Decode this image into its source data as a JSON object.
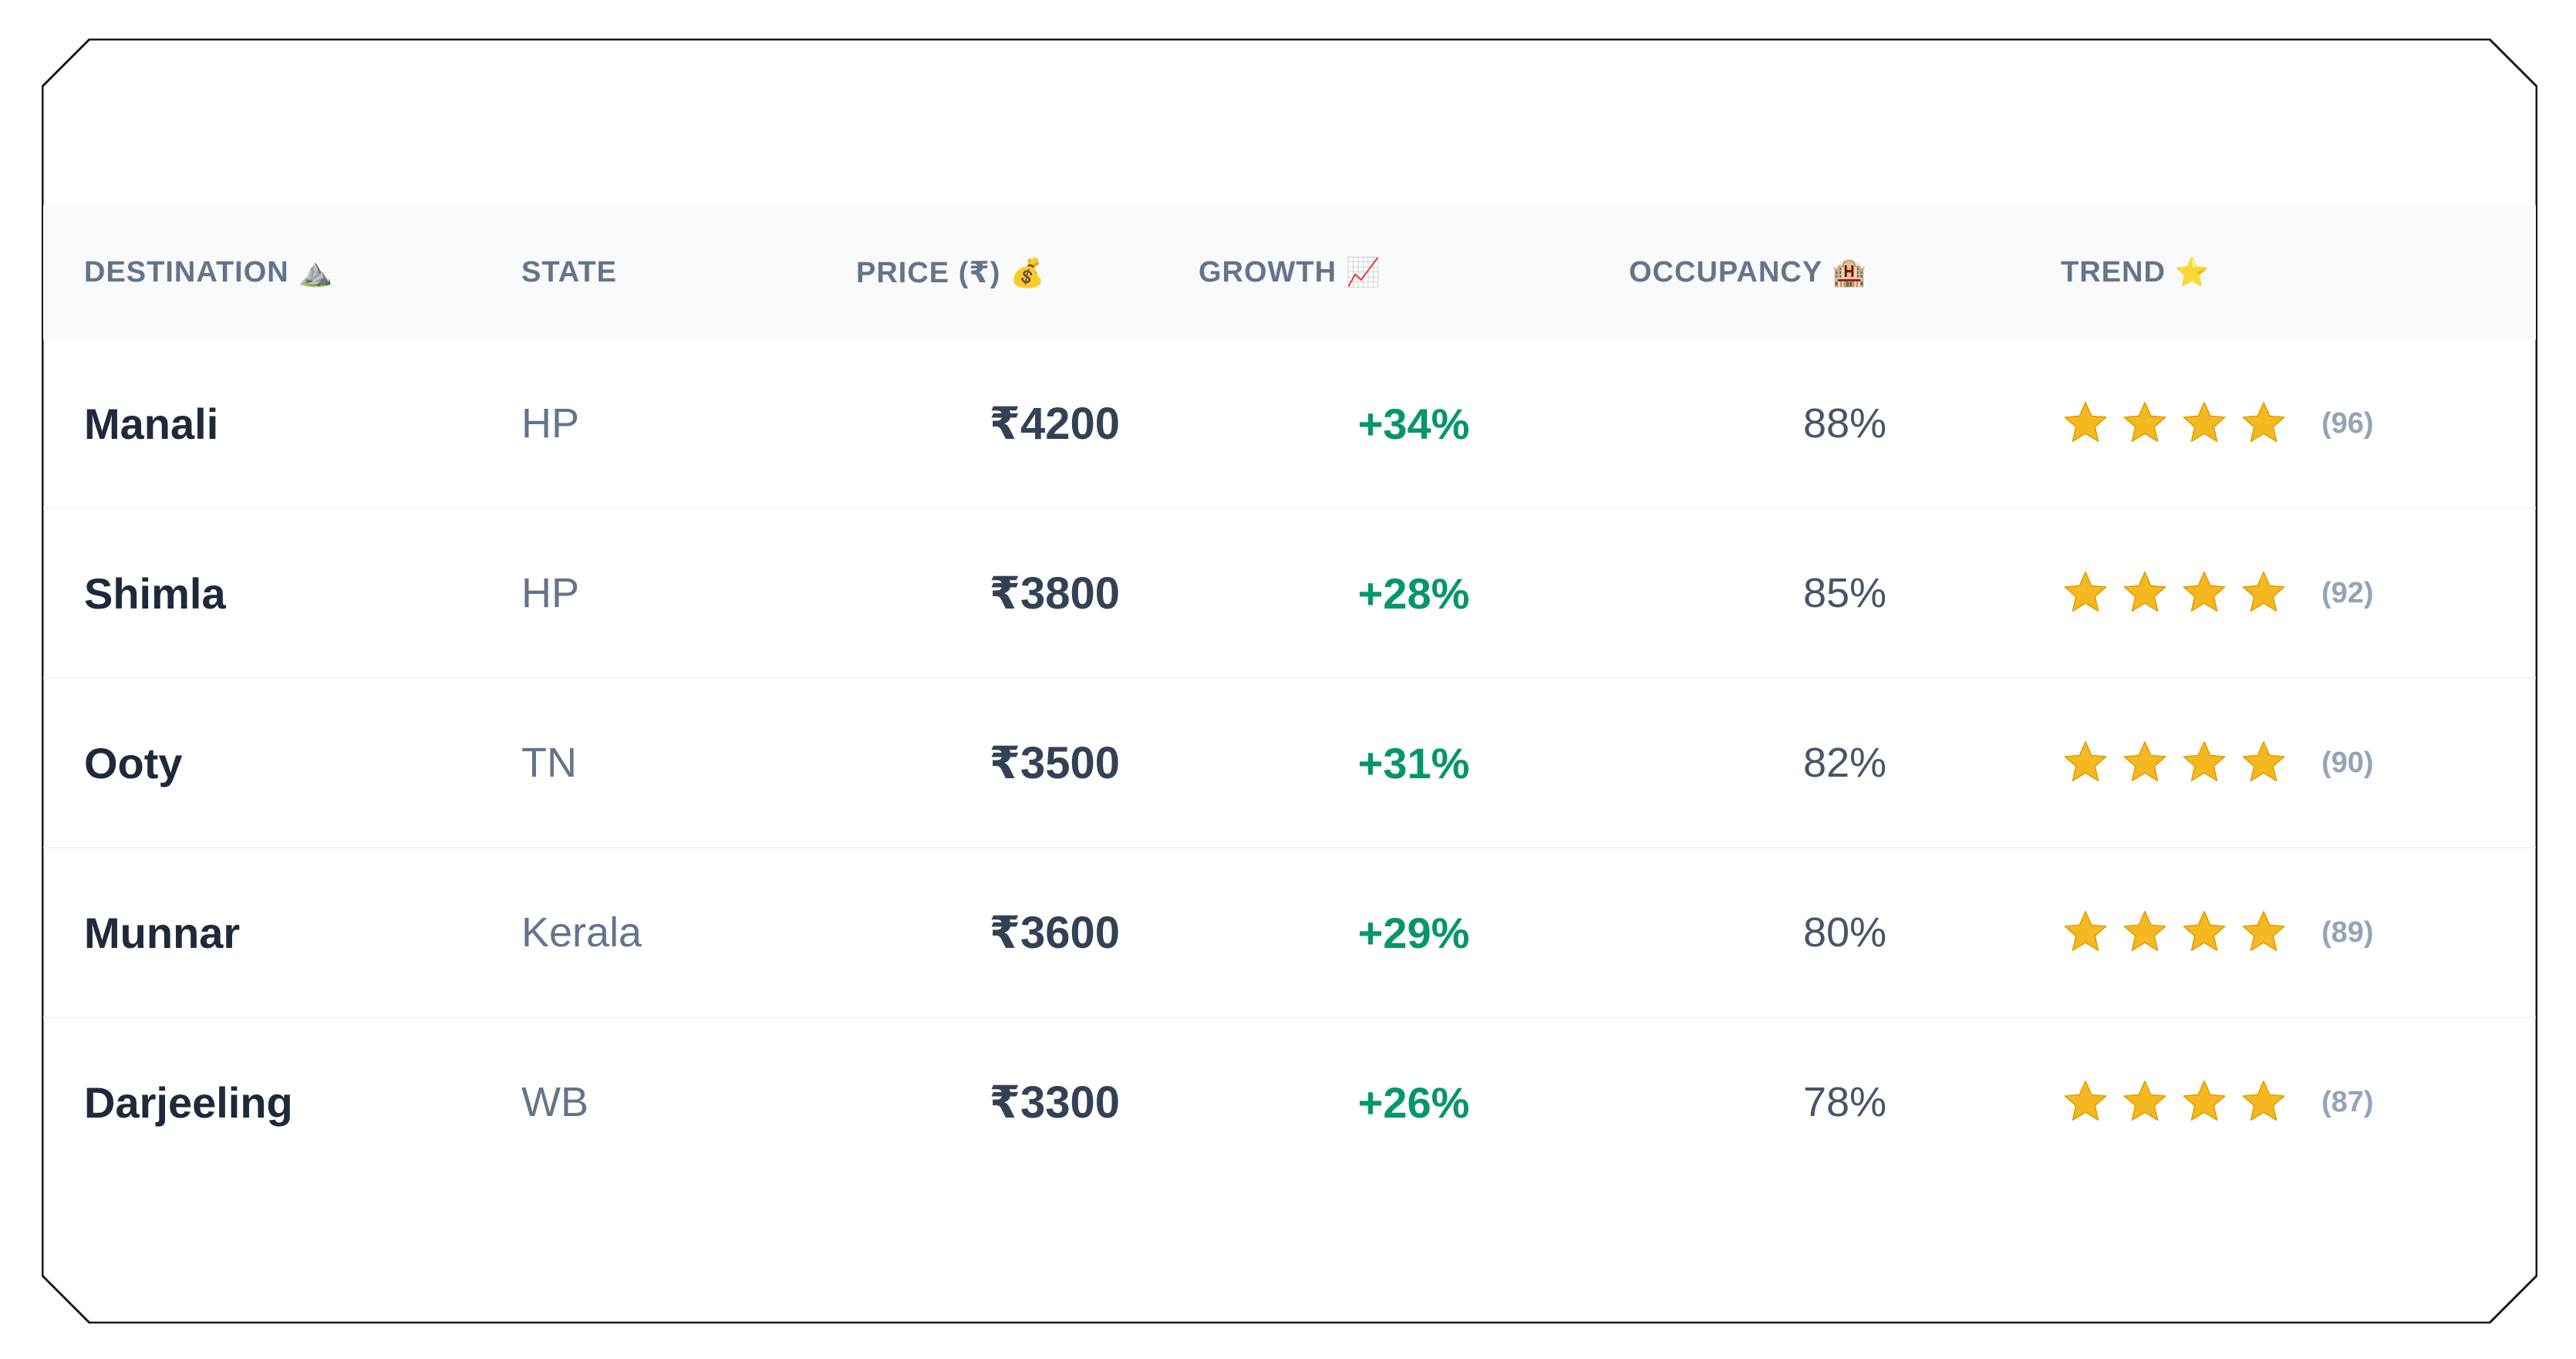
{
  "headers": {
    "destination": "DESTINATION",
    "destination_icon": "⛰️",
    "state": "STATE",
    "price": "PRICE (₹)",
    "price_icon": "💰",
    "growth": "GROWTH",
    "growth_icon": "📈",
    "occupancy": "OCCUPANCY",
    "occupancy_icon": "🏨",
    "trend": "TREND",
    "trend_icon": "⭐"
  },
  "rows": [
    {
      "destination": "Manali",
      "state": "HP",
      "price": "₹4200",
      "growth": "+34%",
      "occupancy": "88%",
      "stars": 4,
      "score": "(96)"
    },
    {
      "destination": "Shimla",
      "state": "HP",
      "price": "₹3800",
      "growth": "+28%",
      "occupancy": "85%",
      "stars": 4,
      "score": "(92)"
    },
    {
      "destination": "Ooty",
      "state": "TN",
      "price": "₹3500",
      "growth": "+31%",
      "occupancy": "82%",
      "stars": 4,
      "score": "(90)"
    },
    {
      "destination": "Munnar",
      "state": "Kerala",
      "price": "₹3600",
      "growth": "+29%",
      "occupancy": "80%",
      "stars": 4,
      "score": "(89)"
    },
    {
      "destination": "Darjeeling",
      "state": "WB",
      "price": "₹3300",
      "growth": "+26%",
      "occupancy": "78%",
      "stars": 4,
      "score": "(87)"
    }
  ],
  "icons": {
    "star": "star-icon"
  },
  "colors": {
    "growth": "#059669",
    "star_fill": "#f5b820",
    "header_bg": "#f8fafc",
    "header_text": "#64748b"
  }
}
